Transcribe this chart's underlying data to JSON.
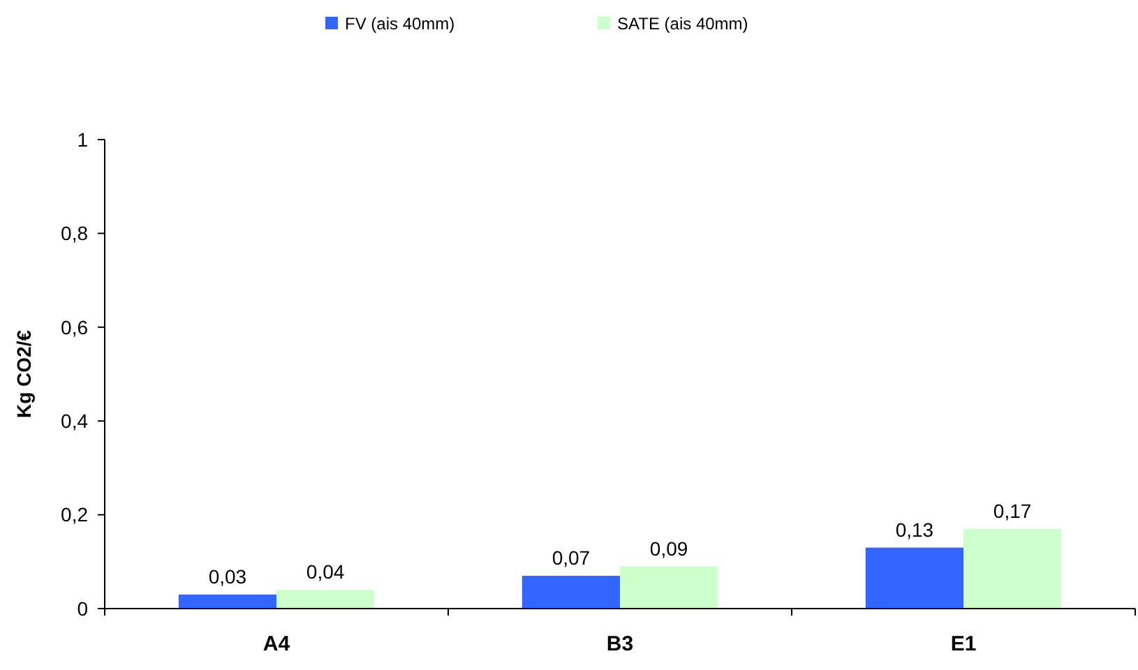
{
  "chart_data": {
    "type": "bar",
    "ylabel": "Kg CO2/€",
    "categories": [
      "A4",
      "B3",
      "E1"
    ],
    "series": [
      {
        "name": "FV (ais 40mm)",
        "color": "#3366ff",
        "values": [
          0.03,
          0.07,
          0.13
        ],
        "value_labels": [
          "0,03",
          "0,07",
          "0,13"
        ]
      },
      {
        "name": "SATE (ais 40mm)",
        "color": "#ccffcc",
        "values": [
          0.04,
          0.09,
          0.17
        ],
        "value_labels": [
          "0,04",
          "0,09",
          "0,17"
        ]
      }
    ],
    "ylim": [
      0,
      1
    ],
    "yticks": [
      0,
      {
        "value": 0.2,
        "label": "0,2"
      },
      {
        "value": 0.4,
        "label": "0,4"
      },
      {
        "value": 0.6,
        "label": "0,6"
      },
      {
        "value": 0.8,
        "label": "0,8"
      },
      1
    ],
    "grid": false,
    "legend": "top"
  }
}
